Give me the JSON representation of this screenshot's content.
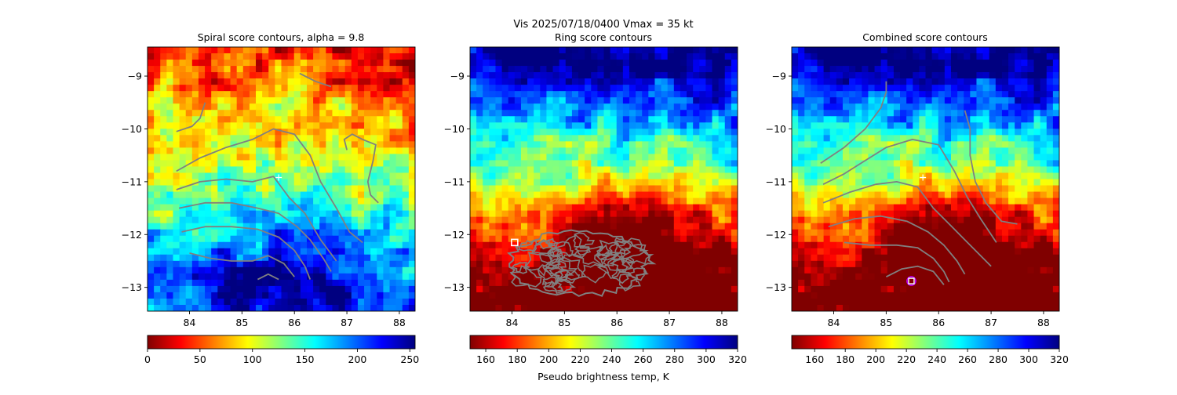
{
  "suptitle": "Vis  2025/07/18/0400    Vmax = 35 kt",
  "colorbar_label": "Pseudo brightness temp, K",
  "colormap": [
    "#800000",
    "#ff0000",
    "#ff8000",
    "#ffff00",
    "#80ff80",
    "#00ffff",
    "#0080ff",
    "#0000ff",
    "#000080"
  ],
  "contour_color": "#808080",
  "chart_data": [
    {
      "type": "heatmap",
      "title": "Spiral score contours, alpha =  9.8",
      "xlim": [
        83.2,
        88.3
      ],
      "ylim": [
        -13.45,
        -8.45
      ],
      "xticks": [
        84,
        85,
        86,
        87,
        88
      ],
      "yticks": [
        -9,
        -10,
        -11,
        -12,
        -13
      ],
      "colorbar": {
        "range": [
          0,
          255
        ],
        "ticks": [
          0,
          50,
          100,
          150,
          200,
          250
        ]
      },
      "contour_lines": [
        [
          [
            83.75,
            -10.8
          ],
          [
            84.2,
            -10.55
          ],
          [
            84.7,
            -10.35
          ],
          [
            85.2,
            -10.2
          ],
          [
            85.6,
            -10.0
          ],
          [
            86.0,
            -10.1
          ],
          [
            86.3,
            -10.5
          ],
          [
            86.5,
            -11.0
          ],
          [
            86.8,
            -11.5
          ],
          [
            87.05,
            -11.95
          ],
          [
            87.3,
            -12.15
          ]
        ],
        [
          [
            83.75,
            -11.15
          ],
          [
            84.2,
            -11.0
          ],
          [
            84.7,
            -10.95
          ],
          [
            85.2,
            -11.0
          ],
          [
            85.6,
            -10.9
          ],
          [
            85.9,
            -11.3
          ],
          [
            86.2,
            -11.6
          ],
          [
            86.5,
            -12.1
          ],
          [
            86.8,
            -12.5
          ]
        ],
        [
          [
            83.8,
            -11.5
          ],
          [
            84.3,
            -11.4
          ],
          [
            84.8,
            -11.4
          ],
          [
            85.3,
            -11.5
          ],
          [
            85.7,
            -11.6
          ],
          [
            86.05,
            -11.85
          ],
          [
            86.3,
            -12.1
          ],
          [
            86.55,
            -12.45
          ],
          [
            86.7,
            -12.7
          ]
        ],
        [
          [
            83.85,
            -11.95
          ],
          [
            84.3,
            -11.85
          ],
          [
            84.8,
            -11.85
          ],
          [
            85.3,
            -11.9
          ],
          [
            85.7,
            -12.05
          ],
          [
            86.0,
            -12.3
          ],
          [
            86.2,
            -12.6
          ],
          [
            86.3,
            -12.85
          ]
        ],
        [
          [
            84.0,
            -12.35
          ],
          [
            84.4,
            -12.45
          ],
          [
            84.8,
            -12.5
          ],
          [
            85.2,
            -12.5
          ],
          [
            85.5,
            -12.4
          ],
          [
            85.8,
            -12.55
          ],
          [
            86.0,
            -12.8
          ]
        ],
        [
          [
            85.3,
            -12.85
          ],
          [
            85.5,
            -12.75
          ],
          [
            85.7,
            -12.85
          ]
        ],
        [
          [
            83.75,
            -10.05
          ],
          [
            84.05,
            -9.95
          ],
          [
            84.2,
            -9.8
          ],
          [
            84.3,
            -9.5
          ]
        ],
        [
          [
            86.1,
            -8.95
          ],
          [
            86.4,
            -9.1
          ],
          [
            86.7,
            -9.2
          ]
        ],
        [
          [
            87.0,
            -10.4
          ],
          [
            86.95,
            -10.2
          ],
          [
            87.1,
            -10.1
          ],
          [
            87.3,
            -10.2
          ],
          [
            87.55,
            -10.3
          ],
          [
            87.5,
            -10.6
          ],
          [
            87.4,
            -11.0
          ],
          [
            87.45,
            -11.25
          ],
          [
            87.55,
            -11.35
          ],
          [
            87.6,
            -11.4
          ]
        ]
      ],
      "marker": {
        "x": 85.7,
        "y": -10.92,
        "symbol": "+"
      }
    },
    {
      "type": "heatmap",
      "title": "Ring score contours",
      "xlim": [
        83.2,
        88.3
      ],
      "ylim": [
        -13.45,
        -8.45
      ],
      "xticks": [
        84,
        85,
        86,
        87,
        88
      ],
      "yticks": [
        -9,
        -10,
        -11,
        -12,
        -13
      ],
      "colorbar": {
        "range": [
          150,
          320
        ],
        "ticks": [
          160,
          180,
          200,
          220,
          240,
          260,
          280,
          300,
          320
        ],
        "label": "Pseudo brightness temp, K"
      },
      "ring_region": {
        "center_x": 85.3,
        "center_y": -12.4,
        "span_x": [
          83.95,
          86.6
        ],
        "span_y": [
          -13.15,
          -11.95
        ]
      },
      "marker": {
        "x": 84.05,
        "y": -12.15,
        "symbol": "square"
      }
    },
    {
      "type": "heatmap",
      "title": "Combined score contours",
      "xlim": [
        83.2,
        88.3
      ],
      "ylim": [
        -13.45,
        -8.45
      ],
      "xticks": [
        84,
        85,
        86,
        87,
        88
      ],
      "yticks": [
        -9,
        -10,
        -11,
        -12,
        -13
      ],
      "colorbar": {
        "range": [
          145,
          320
        ],
        "ticks": [
          160,
          180,
          200,
          220,
          240,
          260,
          280,
          300,
          320
        ]
      },
      "contour_lines": [
        [
          [
            83.75,
            -10.65
          ],
          [
            84.2,
            -10.35
          ],
          [
            84.6,
            -10.0
          ],
          [
            84.9,
            -9.6
          ],
          [
            85.0,
            -9.3
          ],
          [
            85.0,
            -9.1
          ]
        ],
        [
          [
            83.8,
            -11.05
          ],
          [
            84.2,
            -10.85
          ],
          [
            84.6,
            -10.6
          ],
          [
            85.0,
            -10.35
          ],
          [
            85.5,
            -10.2
          ],
          [
            86.0,
            -10.3
          ],
          [
            86.3,
            -10.8
          ],
          [
            86.55,
            -11.3
          ],
          [
            86.8,
            -11.7
          ],
          [
            87.0,
            -12.0
          ],
          [
            87.1,
            -12.15
          ]
        ],
        [
          [
            83.8,
            -11.4
          ],
          [
            84.3,
            -11.2
          ],
          [
            84.8,
            -11.05
          ],
          [
            85.2,
            -11.0
          ],
          [
            85.6,
            -11.1
          ],
          [
            85.9,
            -11.5
          ],
          [
            86.2,
            -11.8
          ],
          [
            86.5,
            -12.1
          ],
          [
            86.8,
            -12.4
          ],
          [
            87.0,
            -12.6
          ]
        ],
        [
          [
            83.9,
            -11.85
          ],
          [
            84.4,
            -11.7
          ],
          [
            84.9,
            -11.65
          ],
          [
            85.4,
            -11.75
          ],
          [
            85.8,
            -11.95
          ],
          [
            86.1,
            -12.2
          ],
          [
            86.35,
            -12.5
          ],
          [
            86.5,
            -12.75
          ]
        ],
        [
          [
            84.2,
            -12.15
          ],
          [
            84.7,
            -12.2
          ],
          [
            85.2,
            -12.2
          ],
          [
            85.6,
            -12.25
          ],
          [
            85.9,
            -12.45
          ],
          [
            86.1,
            -12.7
          ],
          [
            86.2,
            -12.9
          ]
        ],
        [
          [
            85.0,
            -12.8
          ],
          [
            85.3,
            -12.65
          ],
          [
            85.6,
            -12.6
          ],
          [
            85.9,
            -12.7
          ],
          [
            86.1,
            -12.95
          ]
        ],
        [
          [
            86.5,
            -9.65
          ],
          [
            86.6,
            -10.0
          ],
          [
            86.6,
            -10.5
          ],
          [
            86.7,
            -11.0
          ],
          [
            86.9,
            -11.4
          ],
          [
            87.2,
            -11.75
          ],
          [
            87.5,
            -11.8
          ]
        ]
      ],
      "marker": {
        "x": 85.7,
        "y": -10.92,
        "symbol": "+"
      },
      "center_marker": {
        "x": 85.48,
        "y": -12.88,
        "symbol": "square-in-circle"
      }
    }
  ]
}
